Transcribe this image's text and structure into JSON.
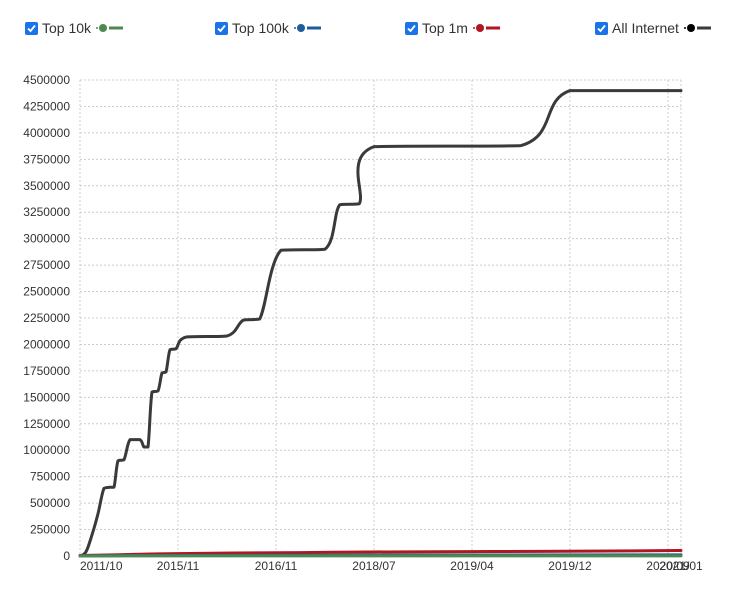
{
  "legend": {
    "items": [
      {
        "label": "Top 10k",
        "color": "#4c8a50",
        "checked": true
      },
      {
        "label": "Top 100k",
        "color": "#1f5c99",
        "checked": true
      },
      {
        "label": "Top 1m",
        "color": "#b0171f",
        "checked": true
      },
      {
        "label": "All Internet",
        "color": "#000000",
        "checked": true
      }
    ]
  },
  "chart_data": {
    "type": "line",
    "title": "",
    "xlabel": "",
    "ylabel": "",
    "ylim": [
      0,
      4500000
    ],
    "yticks": [
      0,
      250000,
      500000,
      750000,
      1000000,
      1250000,
      1500000,
      1750000,
      2000000,
      2250000,
      2500000,
      2750000,
      3000000,
      3250000,
      3500000,
      3750000,
      4000000,
      4250000,
      4500000
    ],
    "ytick_labels": [
      "0",
      "250000",
      "500000",
      "750000",
      "1000000",
      "1250000",
      "1500000",
      "1750000",
      "2000000",
      "2250000",
      "2500000",
      "2750000",
      "3000000",
      "3250000",
      "3500000",
      "3750000",
      "4000000",
      "4250000",
      "4500000"
    ],
    "xlim": [
      "2011-10",
      "2021-01"
    ],
    "xticks": [
      "2011-10",
      "2015-11",
      "2016-11",
      "2018-07",
      "2019-04",
      "2019-12",
      "2020-09",
      "2021-01"
    ],
    "xtick_labels": [
      "2011/10",
      "2015/11",
      "2016/11",
      "2018/07",
      "2019/04",
      "2019/12",
      "2020/09",
      "2021/01"
    ],
    "grid": true,
    "legend_position": "top",
    "series": [
      {
        "name": "All Internet",
        "color": "#3a3a3a",
        "points": [
          [
            "2011-10",
            0
          ],
          [
            "2012-01",
            40000
          ],
          [
            "2012-04",
            200000
          ],
          [
            "2012-07",
            400000
          ],
          [
            "2012-10",
            640000
          ],
          [
            "2013-01",
            650000
          ],
          [
            "2013-03",
            650000
          ],
          [
            "2013-05",
            900000
          ],
          [
            "2013-08",
            910000
          ],
          [
            "2013-11",
            1100000
          ],
          [
            "2014-04",
            1100000
          ],
          [
            "2014-06",
            1030000
          ],
          [
            "2014-08",
            1030000
          ],
          [
            "2014-10",
            1550000
          ],
          [
            "2015-01",
            1560000
          ],
          [
            "2015-03",
            1730000
          ],
          [
            "2015-05",
            1740000
          ],
          [
            "2015-07",
            1950000
          ],
          [
            "2015-10",
            1960000
          ],
          [
            "2015-12",
            2070000
          ],
          [
            "2016-05",
            2080000
          ],
          [
            "2016-07",
            2230000
          ],
          [
            "2016-09",
            2240000
          ],
          [
            "2016-12",
            2890000
          ],
          [
            "2017-09",
            2900000
          ],
          [
            "2017-12",
            3320000
          ],
          [
            "2018-04",
            3330000
          ],
          [
            "2018-07",
            3870000
          ],
          [
            "2019-08",
            3880000
          ],
          [
            "2019-12",
            4400000
          ],
          [
            "2021-01",
            4400000
          ]
        ]
      },
      {
        "name": "Top 1m",
        "color": "#b0171f",
        "points": [
          [
            "2011-10",
            5000
          ],
          [
            "2013-06",
            12000
          ],
          [
            "2015-01",
            20000
          ],
          [
            "2016-06",
            28000
          ],
          [
            "2017-06",
            33000
          ],
          [
            "2018-06",
            38000
          ],
          [
            "2019-06",
            42000
          ],
          [
            "2020-06",
            48000
          ],
          [
            "2021-01",
            52000
          ]
        ]
      },
      {
        "name": "Top 100k",
        "color": "#1f5c99",
        "points": [
          [
            "2011-10",
            2000
          ],
          [
            "2014-01",
            4000
          ],
          [
            "2016-06",
            6000
          ],
          [
            "2018-06",
            8000
          ],
          [
            "2021-01",
            11000
          ]
        ]
      },
      {
        "name": "Top 10k",
        "color": "#4c8a50",
        "points": [
          [
            "2011-10",
            500
          ],
          [
            "2016-06",
            1000
          ],
          [
            "2021-01",
            1500
          ]
        ]
      }
    ]
  }
}
